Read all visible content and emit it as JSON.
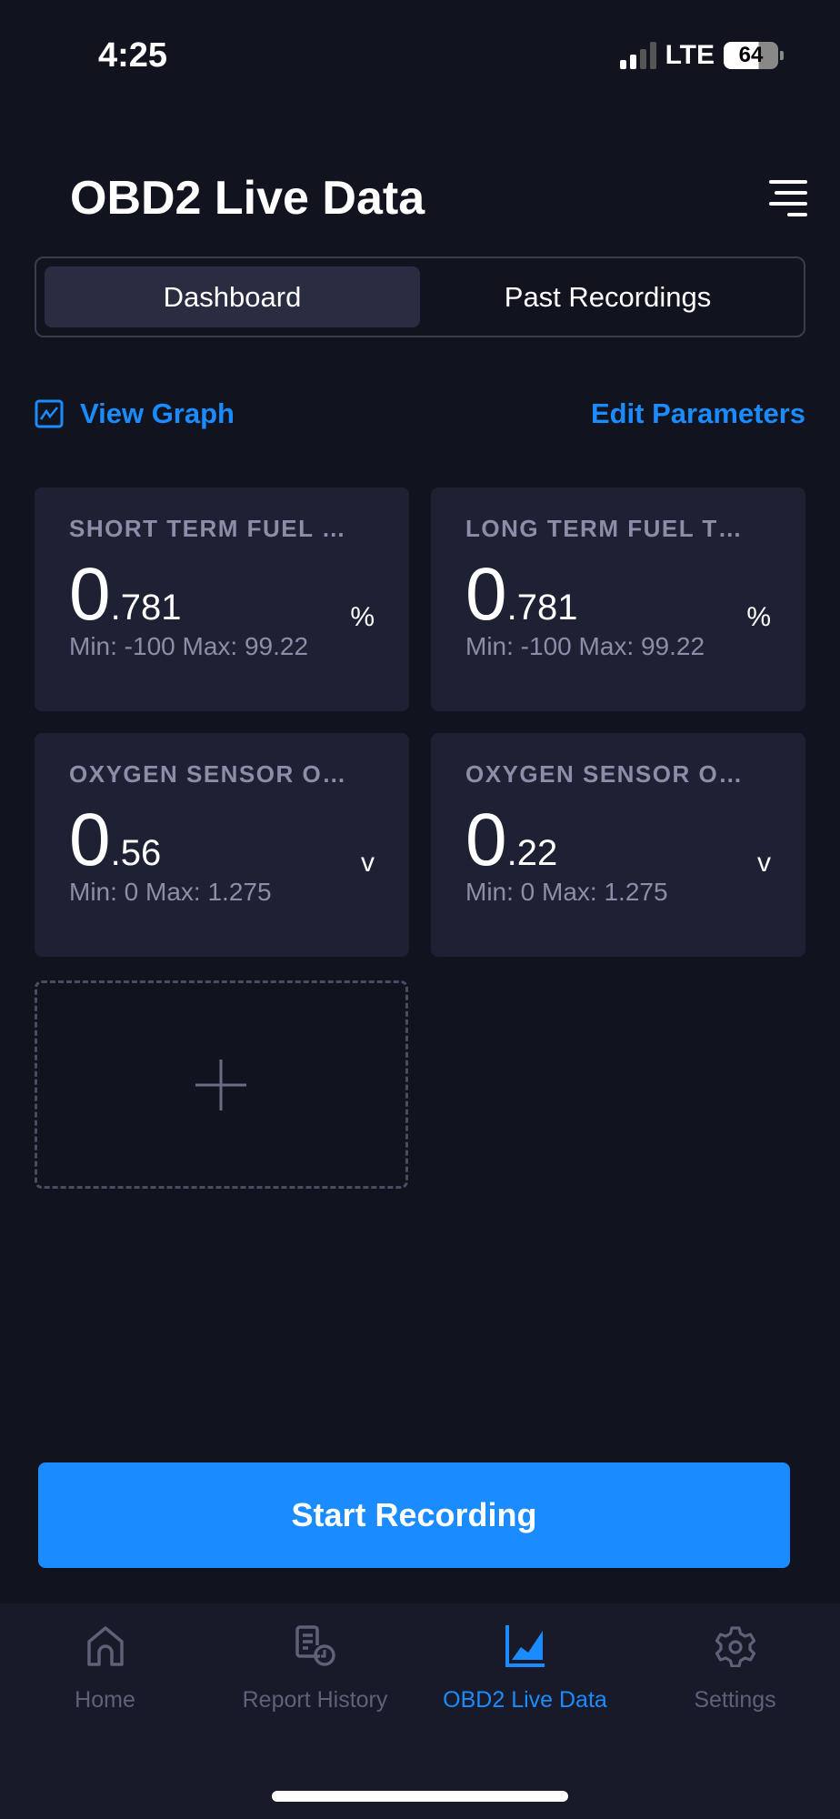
{
  "status_bar": {
    "time": "4:25",
    "network": "LTE",
    "battery": "64",
    "signal_bars_active": 2
  },
  "header": {
    "title": "OBD2 Live Data",
    "menu_icon": "menu-icon"
  },
  "segments": [
    {
      "label": "Dashboard",
      "active": true
    },
    {
      "label": "Past Recordings",
      "active": false
    }
  ],
  "actions": {
    "view_graph": "View Graph",
    "edit_parameters": "Edit Parameters"
  },
  "cards": [
    {
      "title": "SHORT TERM FUEL …",
      "int": "0",
      "dec": ".781",
      "unit": "%",
      "minmax": "Min: -100 Max: 99.22"
    },
    {
      "title": "LONG TERM FUEL T…",
      "int": "0",
      "dec": ".781",
      "unit": "%",
      "minmax": "Min: -100 Max: 99.22"
    },
    {
      "title": "OXYGEN SENSOR O…",
      "int": "0",
      "dec": ".56",
      "unit": "v",
      "minmax": "Min: 0 Max: 1.275"
    },
    {
      "title": "OXYGEN SENSOR O…",
      "int": "0",
      "dec": ".22",
      "unit": "v",
      "minmax": "Min: 0 Max: 1.275"
    }
  ],
  "start_recording": "Start Recording",
  "tabs": [
    {
      "label": "Home",
      "icon": "home-icon"
    },
    {
      "label": "Report History",
      "icon": "report-history-icon"
    },
    {
      "label": "OBD2 Live Data",
      "icon": "chart-icon",
      "active": true
    },
    {
      "label": "Settings",
      "icon": "gear-icon"
    }
  ],
  "colors": {
    "accent": "#1a8cff",
    "background": "#11131f",
    "card": "#1e2133"
  }
}
